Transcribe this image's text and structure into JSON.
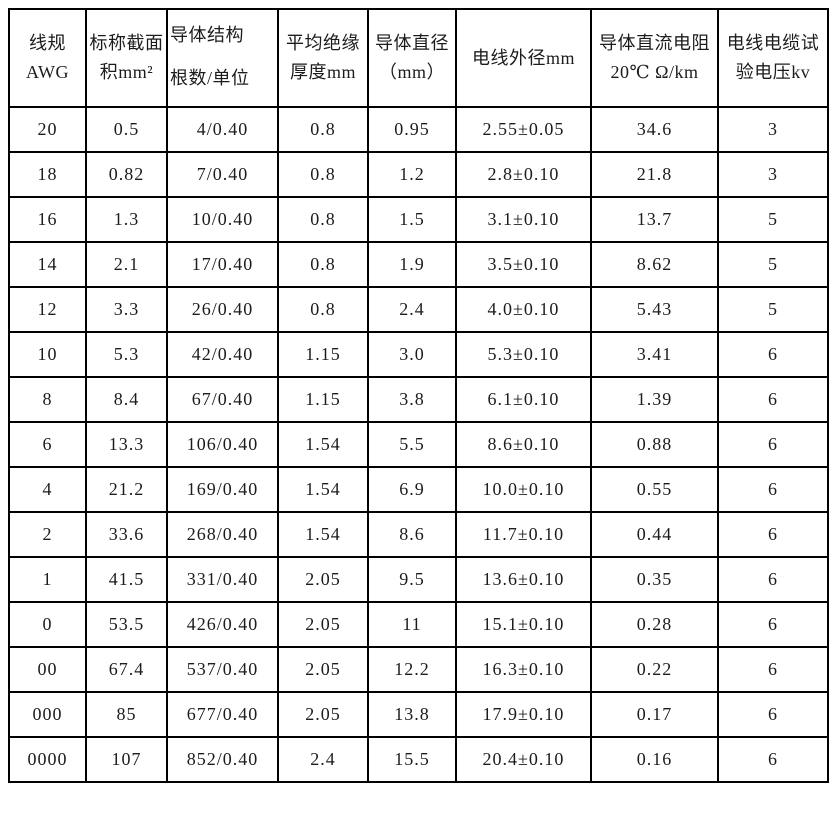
{
  "table": {
    "columns": [
      {
        "id": "awg",
        "label_lines": [
          "线规",
          "AWG"
        ]
      },
      {
        "id": "area",
        "label_lines": [
          "标称截面",
          "积mm²"
        ]
      },
      {
        "id": "structure",
        "label_lines": [
          "导体结构",
          "根数/单位"
        ]
      },
      {
        "id": "insulation",
        "label_lines": [
          "平均绝缘",
          "厚度mm"
        ]
      },
      {
        "id": "diameter",
        "label_lines": [
          "导体直径",
          "（mm）"
        ]
      },
      {
        "id": "outer",
        "label_lines": [
          "电线外径mm"
        ]
      },
      {
        "id": "resistance",
        "label_lines": [
          "导体直流电阻",
          "20℃ Ω/km"
        ]
      },
      {
        "id": "voltage",
        "label_lines": [
          "电线电缆试",
          "验电压kv"
        ]
      }
    ],
    "rows": [
      [
        "20",
        "0.5",
        "4/0.40",
        "0.8",
        "0.95",
        "2.55±0.05",
        "34.6",
        "3"
      ],
      [
        "18",
        "0.82",
        "7/0.40",
        "0.8",
        "1.2",
        "2.8±0.10",
        "21.8",
        "3"
      ],
      [
        "16",
        "1.3",
        "10/0.40",
        "0.8",
        "1.5",
        "3.1±0.10",
        "13.7",
        "5"
      ],
      [
        "14",
        "2.1",
        "17/0.40",
        "0.8",
        "1.9",
        "3.5±0.10",
        "8.62",
        "5"
      ],
      [
        "12",
        "3.3",
        "26/0.40",
        "0.8",
        "2.4",
        "4.0±0.10",
        "5.43",
        "5"
      ],
      [
        "10",
        "5.3",
        "42/0.40",
        "1.15",
        "3.0",
        "5.3±0.10",
        "3.41",
        "6"
      ],
      [
        "8",
        "8.4",
        "67/0.40",
        "1.15",
        "3.8",
        "6.1±0.10",
        "1.39",
        "6"
      ],
      [
        "6",
        "13.3",
        "106/0.40",
        "1.54",
        "5.5",
        "8.6±0.10",
        "0.88",
        "6"
      ],
      [
        "4",
        "21.2",
        "169/0.40",
        "1.54",
        "6.9",
        "10.0±0.10",
        "0.55",
        "6"
      ],
      [
        "2",
        "33.6",
        "268/0.40",
        "1.54",
        "8.6",
        "11.7±0.10",
        "0.44",
        "6"
      ],
      [
        "1",
        "41.5",
        "331/0.40",
        "2.05",
        "9.5",
        "13.6±0.10",
        "0.35",
        "6"
      ],
      [
        "0",
        "53.5",
        "426/0.40",
        "2.05",
        "11",
        "15.1±0.10",
        "0.28",
        "6"
      ],
      [
        "00",
        "67.4",
        "537/0.40",
        "2.05",
        "12.2",
        "16.3±0.10",
        "0.22",
        "6"
      ],
      [
        "000",
        "85",
        "677/0.40",
        "2.05",
        "13.8",
        "17.9±0.10",
        "0.17",
        "6"
      ],
      [
        "0000",
        "107",
        "852/0.40",
        "2.4",
        "15.5",
        "20.4±0.10",
        "0.16",
        "6"
      ]
    ]
  }
}
